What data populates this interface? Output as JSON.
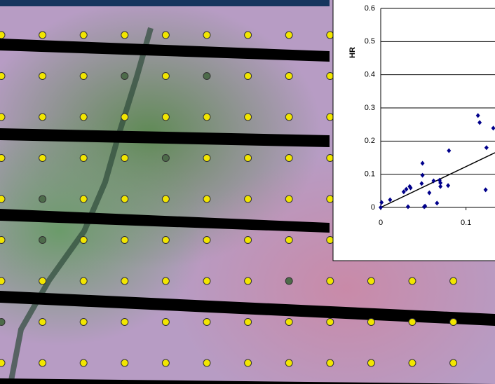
{
  "chart_data": {
    "type": "scatter",
    "y_label": "HR",
    "x": [
      0,
      0.001,
      0.011,
      0.027,
      0.03,
      0.034,
      0.035,
      0.032,
      0.048,
      0.049,
      0.049,
      0.051,
      0.052,
      0.057,
      0.062,
      0.066,
      0.069,
      0.07,
      0.07,
      0.079,
      0.08,
      0.114,
      0.116,
      0.123,
      0.124,
      0.132
    ],
    "values": [
      0,
      0.015,
      0.023,
      0.047,
      0.055,
      0.063,
      0.059,
      0.002,
      0.072,
      0.097,
      0.133,
      0.002,
      0.004,
      0.044,
      0.08,
      0.013,
      0.082,
      0.063,
      0.074,
      0.066,
      0.171,
      0.277,
      0.256,
      0.053,
      0.18,
      0.239
    ],
    "color": "#00008b",
    "trendline": {
      "x": [
        0,
        0.134
      ],
      "values": [
        0,
        0.165
      ],
      "color": "#000000"
    },
    "xlim": [
      0,
      0.134
    ],
    "ylim": [
      0,
      0.6
    ],
    "xticks": [
      0,
      0.1
    ],
    "yticks": [
      0,
      0.1,
      0.2,
      0.3,
      0.4,
      0.5,
      0.6
    ],
    "grid": true
  }
}
